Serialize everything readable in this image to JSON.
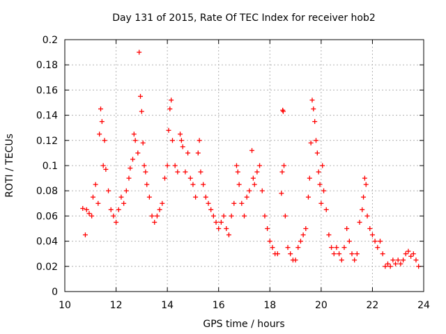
{
  "chart_data": {
    "type": "scatter",
    "title": "Day 131 of 2015, Rate Of TEC Index for receiver hob2",
    "xlabel": "GPS time / hours",
    "ylabel": "ROTI / TECUs",
    "xlim": [
      10,
      24
    ],
    "ylim": [
      0,
      0.2
    ],
    "x_ticks": [
      10,
      12,
      14,
      16,
      18,
      20,
      22,
      24
    ],
    "x_tick_labels": [
      "10",
      "12",
      "14",
      "16",
      "18",
      "20",
      "22",
      "24"
    ],
    "y_ticks": [
      0,
      0.02,
      0.04,
      0.06,
      0.08,
      0.1,
      0.12,
      0.14,
      0.16,
      0.18,
      0.2
    ],
    "y_tick_labels": [
      "0",
      "0.02",
      "0.04",
      "0.06",
      "0.08",
      "0.1",
      "0.12",
      "0.14",
      "0.16",
      "0.18",
      "0.2"
    ],
    "grid": true,
    "marker": "+",
    "series": [
      {
        "color": "#ff0000",
        "points": [
          [
            10.7,
            0.066
          ],
          [
            10.8,
            0.045
          ],
          [
            10.85,
            0.065
          ],
          [
            10.95,
            0.062
          ],
          [
            11.05,
            0.06
          ],
          [
            11.1,
            0.075
          ],
          [
            11.2,
            0.085
          ],
          [
            11.3,
            0.07
          ],
          [
            11.35,
            0.125
          ],
          [
            11.4,
            0.145
          ],
          [
            11.45,
            0.135
          ],
          [
            11.5,
            0.1
          ],
          [
            11.55,
            0.12
          ],
          [
            11.6,
            0.097
          ],
          [
            11.7,
            0.08
          ],
          [
            11.8,
            0.065
          ],
          [
            11.9,
            0.06
          ],
          [
            12.0,
            0.055
          ],
          [
            12.1,
            0.065
          ],
          [
            12.2,
            0.075
          ],
          [
            12.3,
            0.07
          ],
          [
            12.4,
            0.08
          ],
          [
            12.5,
            0.09
          ],
          [
            12.55,
            0.098
          ],
          [
            12.65,
            0.105
          ],
          [
            12.7,
            0.125
          ],
          [
            12.75,
            0.12
          ],
          [
            12.85,
            0.11
          ],
          [
            12.9,
            0.19
          ],
          [
            12.95,
            0.155
          ],
          [
            13.0,
            0.143
          ],
          [
            13.05,
            0.118
          ],
          [
            13.1,
            0.1
          ],
          [
            13.15,
            0.095
          ],
          [
            13.2,
            0.085
          ],
          [
            13.3,
            0.075
          ],
          [
            13.4,
            0.06
          ],
          [
            13.5,
            0.055
          ],
          [
            13.6,
            0.06
          ],
          [
            13.7,
            0.065
          ],
          [
            13.8,
            0.07
          ],
          [
            13.9,
            0.09
          ],
          [
            14.0,
            0.1
          ],
          [
            14.05,
            0.128
          ],
          [
            14.1,
            0.145
          ],
          [
            14.15,
            0.152
          ],
          [
            14.2,
            0.12
          ],
          [
            14.3,
            0.1
          ],
          [
            14.4,
            0.095
          ],
          [
            14.5,
            0.125
          ],
          [
            14.55,
            0.12
          ],
          [
            14.6,
            0.115
          ],
          [
            14.7,
            0.095
          ],
          [
            14.8,
            0.11
          ],
          [
            14.9,
            0.09
          ],
          [
            15.0,
            0.085
          ],
          [
            15.1,
            0.075
          ],
          [
            15.2,
            0.11
          ],
          [
            15.25,
            0.12
          ],
          [
            15.3,
            0.095
          ],
          [
            15.4,
            0.085
          ],
          [
            15.5,
            0.075
          ],
          [
            15.6,
            0.07
          ],
          [
            15.7,
            0.065
          ],
          [
            15.8,
            0.06
          ],
          [
            15.9,
            0.055
          ],
          [
            16.0,
            0.05
          ],
          [
            16.1,
            0.055
          ],
          [
            16.2,
            0.06
          ],
          [
            16.3,
            0.05
          ],
          [
            16.4,
            0.045
          ],
          [
            16.5,
            0.06
          ],
          [
            16.6,
            0.07
          ],
          [
            16.7,
            0.1
          ],
          [
            16.75,
            0.095
          ],
          [
            16.8,
            0.085
          ],
          [
            16.9,
            0.07
          ],
          [
            17.0,
            0.06
          ],
          [
            17.1,
            0.075
          ],
          [
            17.2,
            0.08
          ],
          [
            17.3,
            0.112
          ],
          [
            17.35,
            0.09
          ],
          [
            17.4,
            0.085
          ],
          [
            17.5,
            0.095
          ],
          [
            17.6,
            0.1
          ],
          [
            17.7,
            0.08
          ],
          [
            17.8,
            0.06
          ],
          [
            17.9,
            0.05
          ],
          [
            18.0,
            0.04
          ],
          [
            18.1,
            0.035
          ],
          [
            18.2,
            0.03
          ],
          [
            18.3,
            0.03
          ],
          [
            18.45,
            0.078
          ],
          [
            18.48,
            0.095
          ],
          [
            18.5,
            0.144
          ],
          [
            18.52,
            0.143
          ],
          [
            18.55,
            0.1
          ],
          [
            18.6,
            0.06
          ],
          [
            18.7,
            0.035
          ],
          [
            18.8,
            0.03
          ],
          [
            18.9,
            0.025
          ],
          [
            19.0,
            0.025
          ],
          [
            19.1,
            0.035
          ],
          [
            19.2,
            0.04
          ],
          [
            19.3,
            0.045
          ],
          [
            19.4,
            0.05
          ],
          [
            19.5,
            0.075
          ],
          [
            19.55,
            0.09
          ],
          [
            19.6,
            0.118
          ],
          [
            19.65,
            0.152
          ],
          [
            19.7,
            0.145
          ],
          [
            19.75,
            0.135
          ],
          [
            19.8,
            0.12
          ],
          [
            19.85,
            0.11
          ],
          [
            19.9,
            0.095
          ],
          [
            19.95,
            0.085
          ],
          [
            20.0,
            0.07
          ],
          [
            20.05,
            0.1
          ],
          [
            20.1,
            0.08
          ],
          [
            20.2,
            0.065
          ],
          [
            20.3,
            0.045
          ],
          [
            20.4,
            0.035
          ],
          [
            20.5,
            0.03
          ],
          [
            20.6,
            0.035
          ],
          [
            20.7,
            0.03
          ],
          [
            20.8,
            0.025
          ],
          [
            20.9,
            0.035
          ],
          [
            21.0,
            0.05
          ],
          [
            21.1,
            0.04
          ],
          [
            21.2,
            0.03
          ],
          [
            21.3,
            0.025
          ],
          [
            21.4,
            0.03
          ],
          [
            21.5,
            0.055
          ],
          [
            21.6,
            0.065
          ],
          [
            21.65,
            0.075
          ],
          [
            21.7,
            0.09
          ],
          [
            21.75,
            0.085
          ],
          [
            21.8,
            0.06
          ],
          [
            21.9,
            0.05
          ],
          [
            22.0,
            0.045
          ],
          [
            22.1,
            0.04
          ],
          [
            22.2,
            0.035
          ],
          [
            22.3,
            0.04
          ],
          [
            22.4,
            0.03
          ],
          [
            22.5,
            0.02
          ],
          [
            22.6,
            0.022
          ],
          [
            22.7,
            0.02
          ],
          [
            22.8,
            0.025
          ],
          [
            22.9,
            0.022
          ],
          [
            23.0,
            0.025
          ],
          [
            23.1,
            0.022
          ],
          [
            23.2,
            0.025
          ],
          [
            23.3,
            0.03
          ],
          [
            23.4,
            0.032
          ],
          [
            23.5,
            0.028
          ],
          [
            23.6,
            0.03
          ],
          [
            23.7,
            0.025
          ],
          [
            23.8,
            0.02
          ]
        ]
      }
    ]
  }
}
